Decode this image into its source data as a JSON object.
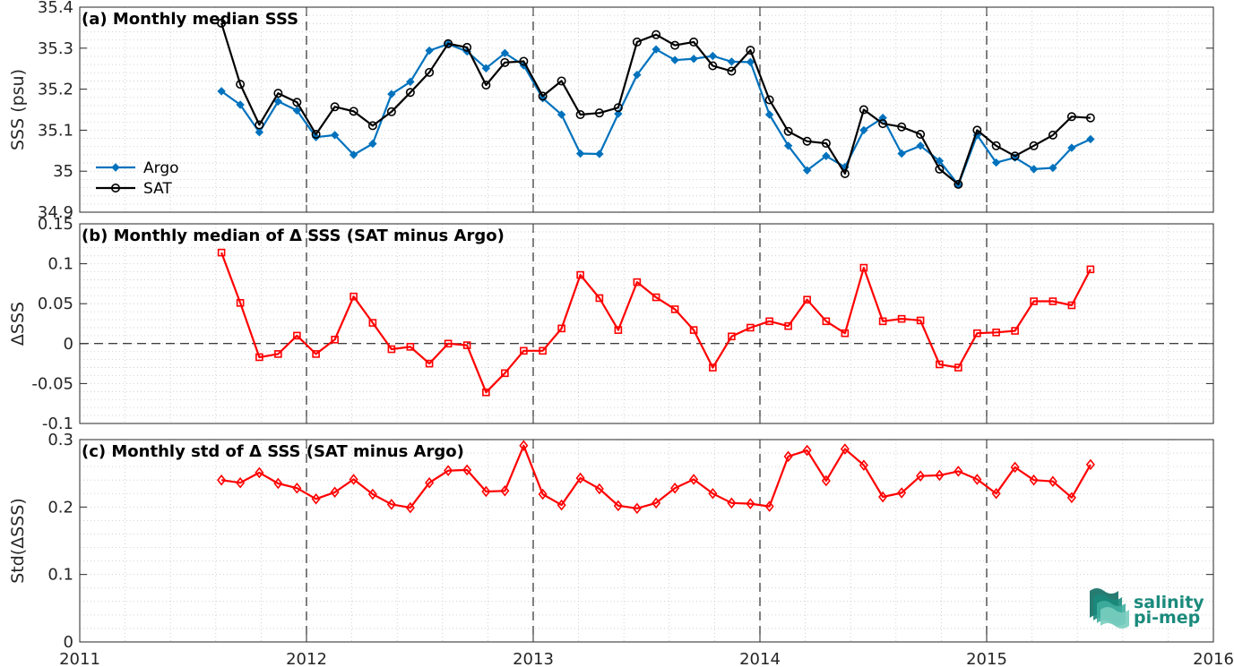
{
  "chart_data": [
    {
      "type": "line",
      "title": "(a) Monthly median SSS",
      "ylabel": "SSS (psu)",
      "ylim": [
        34.9,
        35.4
      ],
      "yticks": [
        34.9,
        35,
        35.1,
        35.2,
        35.3,
        35.4
      ],
      "ytick_labels": [
        "34.9",
        "35",
        "35.1",
        "35.2",
        "35.3",
        "35.4"
      ],
      "xlim": [
        2011,
        2016
      ],
      "grid": "minor-dotted",
      "legend_position": "bottom-left",
      "series": [
        {
          "name": "Argo",
          "color": "#0072bd",
          "marker": "diamond",
          "x": [
            2011.625,
            2011.708,
            2011.792,
            2011.875,
            2011.958,
            2012.042,
            2012.125,
            2012.208,
            2012.292,
            2012.375,
            2012.458,
            2012.542,
            2012.625,
            2012.708,
            2012.792,
            2012.875,
            2012.958,
            2013.042,
            2013.125,
            2013.208,
            2013.292,
            2013.375,
            2013.458,
            2013.542,
            2013.625,
            2013.708,
            2013.792,
            2013.875,
            2013.958,
            2014.042,
            2014.125,
            2014.208,
            2014.292,
            2014.375,
            2014.458,
            2014.542,
            2014.625,
            2014.708,
            2014.792,
            2014.875,
            2014.958,
            2015.042,
            2015.125,
            2015.208,
            2015.292,
            2015.375,
            2015.458
          ],
          "y": [
            35.195,
            35.162,
            35.095,
            35.17,
            35.148,
            35.083,
            35.088,
            35.04,
            35.067,
            35.188,
            35.218,
            35.294,
            35.31,
            35.292,
            35.251,
            35.288,
            35.258,
            35.178,
            35.138,
            35.043,
            35.042,
            35.14,
            35.235,
            35.297,
            35.271,
            35.274,
            35.281,
            35.267,
            35.266,
            35.138,
            35.062,
            35.002,
            35.037,
            35.01,
            35.1,
            35.13,
            35.043,
            35.062,
            35.025,
            34.967,
            35.088,
            35.021,
            35.033,
            35.005,
            35.008,
            35.057,
            35.078
          ]
        },
        {
          "name": "SAT",
          "color": "#000000",
          "marker": "circle",
          "x": [
            2011.625,
            2011.708,
            2011.792,
            2011.875,
            2011.958,
            2012.042,
            2012.125,
            2012.208,
            2012.292,
            2012.375,
            2012.458,
            2012.542,
            2012.625,
            2012.708,
            2012.792,
            2012.875,
            2012.958,
            2013.042,
            2013.125,
            2013.208,
            2013.292,
            2013.375,
            2013.458,
            2013.542,
            2013.625,
            2013.708,
            2013.792,
            2013.875,
            2013.958,
            2014.042,
            2014.125,
            2014.208,
            2014.292,
            2014.375,
            2014.458,
            2014.542,
            2014.625,
            2014.708,
            2014.792,
            2014.875,
            2014.958,
            2015.042,
            2015.125,
            2015.208,
            2015.292,
            2015.375,
            2015.458
          ],
          "y": [
            35.361,
            35.212,
            35.113,
            35.19,
            35.168,
            35.09,
            35.157,
            35.146,
            35.111,
            35.145,
            35.192,
            35.241,
            35.311,
            35.302,
            35.21,
            35.265,
            35.268,
            35.183,
            35.22,
            35.138,
            35.142,
            35.155,
            35.315,
            35.333,
            35.307,
            35.315,
            35.257,
            35.244,
            35.295,
            35.174,
            35.097,
            35.073,
            35.068,
            34.994,
            35.15,
            35.116,
            35.108,
            35.09,
            35.005,
            34.968,
            35.1,
            35.062,
            35.037,
            35.062,
            35.088,
            35.133,
            35.13
          ]
        }
      ]
    },
    {
      "type": "line",
      "title": "(b) Monthly median of Δ SSS (SAT minus Argo)",
      "ylabel": "ΔSSS",
      "ylim": [
        -0.1,
        0.15
      ],
      "yticks": [
        -0.1,
        -0.05,
        0,
        0.05,
        0.1,
        0.15
      ],
      "ytick_labels": [
        "-0.1",
        "-0.05",
        "0",
        "0.05",
        "0.1",
        "0.15"
      ],
      "xlim": [
        2011,
        2016
      ],
      "grid": "minor-dotted",
      "zero_line": "dashed",
      "series": [
        {
          "name": "",
          "color": "#ff0000",
          "marker": "square",
          "x": [
            2011.625,
            2011.708,
            2011.792,
            2011.875,
            2011.958,
            2012.042,
            2012.125,
            2012.208,
            2012.292,
            2012.375,
            2012.458,
            2012.542,
            2012.625,
            2012.708,
            2012.792,
            2012.875,
            2012.958,
            2013.042,
            2013.125,
            2013.208,
            2013.292,
            2013.375,
            2013.458,
            2013.542,
            2013.625,
            2013.708,
            2013.792,
            2013.875,
            2013.958,
            2014.042,
            2014.125,
            2014.208,
            2014.292,
            2014.375,
            2014.458,
            2014.542,
            2014.625,
            2014.708,
            2014.792,
            2014.875,
            2014.958,
            2015.042,
            2015.125,
            2015.208,
            2015.292,
            2015.375,
            2015.458
          ],
          "y": [
            0.114,
            0.051,
            -0.017,
            -0.013,
            0.01,
            -0.013,
            0.005,
            0.059,
            0.026,
            -0.007,
            -0.004,
            -0.025,
            0.0,
            -0.002,
            -0.061,
            -0.037,
            -0.009,
            -0.009,
            0.019,
            0.086,
            0.057,
            0.017,
            0.077,
            0.058,
            0.043,
            0.017,
            -0.03,
            0.009,
            0.02,
            0.028,
            0.022,
            0.055,
            0.028,
            0.013,
            0.095,
            0.028,
            0.031,
            0.029,
            -0.026,
            -0.03,
            0.013,
            0.014,
            0.016,
            0.053,
            0.053,
            0.048,
            0.093
          ]
        }
      ]
    },
    {
      "type": "line",
      "title": "(c) Monthly std of Δ SSS (SAT minus Argo)",
      "ylabel": "Std(ΔSSS)",
      "ylim": [
        0,
        0.3
      ],
      "yticks": [
        0,
        0.1,
        0.2,
        0.3
      ],
      "ytick_labels": [
        "0",
        "0.1",
        "0.2",
        "0.3"
      ],
      "xlim": [
        2011,
        2016
      ],
      "xticks": [
        2011,
        2012,
        2013,
        2014,
        2015,
        2016
      ],
      "xtick_labels": [
        "2011",
        "2012",
        "2013",
        "2014",
        "2015",
        "2016"
      ],
      "grid": "minor-dotted",
      "series": [
        {
          "name": "",
          "color": "#ff0000",
          "marker": "diamond-open",
          "x": [
            2011.625,
            2011.708,
            2011.792,
            2011.875,
            2011.958,
            2012.042,
            2012.125,
            2012.208,
            2012.292,
            2012.375,
            2012.458,
            2012.542,
            2012.625,
            2012.708,
            2012.792,
            2012.875,
            2012.958,
            2013.042,
            2013.125,
            2013.208,
            2013.292,
            2013.375,
            2013.458,
            2013.542,
            2013.625,
            2013.708,
            2013.792,
            2013.875,
            2013.958,
            2014.042,
            2014.125,
            2014.208,
            2014.292,
            2014.375,
            2014.458,
            2014.542,
            2014.625,
            2014.708,
            2014.792,
            2014.875,
            2014.958,
            2015.042,
            2015.125,
            2015.208,
            2015.292,
            2015.375,
            2015.458
          ],
          "y": [
            0.24,
            0.236,
            0.251,
            0.235,
            0.228,
            0.212,
            0.222,
            0.241,
            0.219,
            0.204,
            0.199,
            0.236,
            0.254,
            0.255,
            0.223,
            0.224,
            0.291,
            0.219,
            0.203,
            0.243,
            0.227,
            0.202,
            0.198,
            0.206,
            0.228,
            0.241,
            0.22,
            0.206,
            0.205,
            0.201,
            0.275,
            0.284,
            0.239,
            0.286,
            0.262,
            0.215,
            0.221,
            0.246,
            0.247,
            0.253,
            0.241,
            0.22,
            0.259,
            0.24,
            0.238,
            0.214,
            0.263
          ]
        }
      ]
    }
  ],
  "year_markers": [
    2012,
    2013,
    2014,
    2015
  ],
  "logo": {
    "line1": "salinity",
    "line2": "pi-mep",
    "color": "#1a8a7c"
  }
}
